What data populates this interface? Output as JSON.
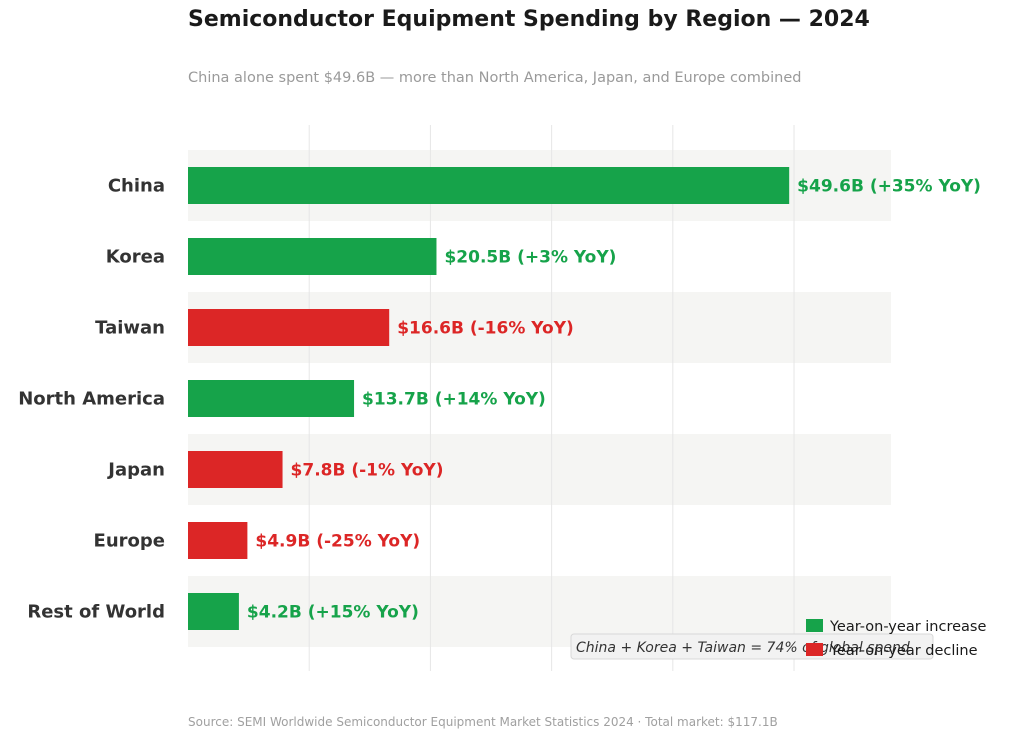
{
  "chart_data": {
    "type": "bar",
    "orientation": "horizontal",
    "title": "Semiconductor Equipment Spending by Region — 2024",
    "subtitle": "China alone spent $49.6B — more than North America, Japan, and Europe combined",
    "categories": [
      "China",
      "Korea",
      "Taiwan",
      "North America",
      "Japan",
      "Europe",
      "Rest of World"
    ],
    "series": [
      {
        "values": [
          49.6,
          20.5,
          16.6,
          13.7,
          7.8,
          4.9,
          4.2
        ],
        "yoy_percent": [
          35,
          3,
          -16,
          14,
          -1,
          -25,
          15
        ],
        "data_labels": [
          "$49.6B  (+35% YoY)",
          "$20.5B  (+3% YoY)",
          "$16.6B  (-16% YoY)",
          "$13.7B  (+14% YoY)",
          "$7.8B  (-1% YoY)",
          "$4.9B  (-25% YoY)",
          "$4.2B  (+15% YoY)"
        ]
      }
    ],
    "xlim": [
      0,
      58
    ],
    "gridlines_at": [
      10,
      20,
      30,
      40,
      50
    ],
    "grid": true,
    "tick_labels_shown": false,
    "colors": {
      "increase": "#16a34a",
      "decline": "#dc2626",
      "band": "#f5f5f3",
      "grid": "#e6e6e6"
    },
    "legend": {
      "placement": "bottom-right",
      "entries": [
        {
          "label": "Year-on-year increase",
          "color": "#16a34a"
        },
        {
          "label": "Year-on-year decline",
          "color": "#dc2626"
        }
      ]
    },
    "annotation": "China + Korea + Taiwan = 74% of global spend",
    "source": "Source: SEMI Worldwide Semiconductor Equipment Market Statistics 2024  ·  Total market: $117.1B"
  }
}
